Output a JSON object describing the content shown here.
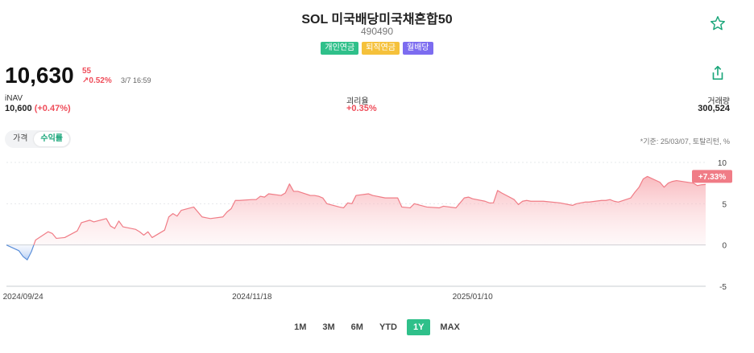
{
  "header": {
    "title": "SOL 미국배당미국채혼합50",
    "code": "490490",
    "badges": [
      {
        "label": "개인연금",
        "color": "#2fc08a"
      },
      {
        "label": "퇴직연금",
        "color": "#f5c13b"
      },
      {
        "label": "월배당",
        "color": "#7c6cf0"
      }
    ],
    "star_icon": "star-icon",
    "share_icon": "share-icon"
  },
  "quote": {
    "price": "10,630",
    "change_abs": "55",
    "change_pct": "↗0.52%",
    "timestamp": "3/7 16:59"
  },
  "stats": {
    "inav_label": "iNAV",
    "inav_value": "10,600",
    "inav_change": "(+0.47%)",
    "premium_label": "괴리율",
    "premium_value": "+0.35%",
    "volume_label": "거래량",
    "volume_value": "300,524"
  },
  "tabs": [
    {
      "label": "가격",
      "active": false
    },
    {
      "label": "수익률",
      "active": true
    }
  ],
  "basis_note": "*기준: 25/03/07, 토탈리턴, %",
  "chart_data": {
    "type": "area",
    "x": [
      "2024-09-20",
      "2024-09-23",
      "2024-09-24",
      "2024-09-25",
      "2024-09-26",
      "2024-09-27",
      "2024-09-30",
      "2024-10-01",
      "2024-10-02",
      "2024-10-04",
      "2024-10-07",
      "2024-10-08",
      "2024-10-10",
      "2024-10-11",
      "2024-10-14",
      "2024-10-15",
      "2024-10-16",
      "2024-10-17",
      "2024-10-18",
      "2024-10-21",
      "2024-10-22",
      "2024-10-23",
      "2024-10-24",
      "2024-10-25",
      "2024-10-28",
      "2024-10-29",
      "2024-10-30",
      "2024-10-31",
      "2024-11-01",
      "2024-11-04",
      "2024-11-05",
      "2024-11-06",
      "2024-11-07",
      "2024-11-08",
      "2024-11-11",
      "2024-11-12",
      "2024-11-13",
      "2024-11-14",
      "2024-11-15",
      "2024-11-18",
      "2024-11-19",
      "2024-11-20",
      "2024-11-21",
      "2024-11-22",
      "2024-11-25",
      "2024-11-26",
      "2024-11-27",
      "2024-11-28",
      "2024-11-29",
      "2024-12-02",
      "2024-12-03",
      "2024-12-04",
      "2024-12-05",
      "2024-12-06",
      "2024-12-09",
      "2024-12-10",
      "2024-12-11",
      "2024-12-12",
      "2024-12-13",
      "2024-12-16",
      "2024-12-17",
      "2024-12-18",
      "2024-12-19",
      "2024-12-20",
      "2024-12-23",
      "2024-12-24",
      "2024-12-26",
      "2024-12-27",
      "2024-12-30",
      "2025-01-02",
      "2025-01-03",
      "2025-01-06",
      "2025-01-07",
      "2025-01-08",
      "2025-01-09",
      "2025-01-10",
      "2025-01-13",
      "2025-01-14",
      "2025-01-15",
      "2025-01-16",
      "2025-01-17",
      "2025-01-20",
      "2025-01-21",
      "2025-01-22",
      "2025-01-23",
      "2025-01-24",
      "2025-01-27",
      "2025-01-31",
      "2025-02-03",
      "2025-02-04",
      "2025-02-05",
      "2025-02-06",
      "2025-02-07",
      "2025-02-10",
      "2025-02-11",
      "2025-02-12",
      "2025-02-13",
      "2025-02-14",
      "2025-02-17",
      "2025-02-18",
      "2025-02-19",
      "2025-02-20",
      "2025-02-21",
      "2025-02-24",
      "2025-02-25",
      "2025-02-26",
      "2025-02-27",
      "2025-02-28",
      "2025-03-04",
      "2025-03-05",
      "2025-03-06",
      "2025-03-07"
    ],
    "values": [
      0.0,
      -0.7,
      -1.4,
      -1.8,
      -0.8,
      0.6,
      1.6,
      1.4,
      0.8,
      0.9,
      1.7,
      2.7,
      3.0,
      2.8,
      3.2,
      2.3,
      2.0,
      2.9,
      2.2,
      1.9,
      1.6,
      1.2,
      1.6,
      0.9,
      1.8,
      3.4,
      3.8,
      3.5,
      4.2,
      4.6,
      4.0,
      3.4,
      3.3,
      3.2,
      3.4,
      4.0,
      4.4,
      5.4,
      5.4,
      5.5,
      5.5,
      5.9,
      5.8,
      6.2,
      6.0,
      6.3,
      7.4,
      6.5,
      6.5,
      6.0,
      6.0,
      5.9,
      5.7,
      5.0,
      4.6,
      4.5,
      5.1,
      5.0,
      6.0,
      6.2,
      6.0,
      5.9,
      5.8,
      5.7,
      5.7,
      4.6,
      4.5,
      5.0,
      4.6,
      4.5,
      4.7,
      4.5,
      5.1,
      5.7,
      5.8,
      5.6,
      5.3,
      5.1,
      5.1,
      6.6,
      6.3,
      5.5,
      4.9,
      5.3,
      5.4,
      5.3,
      5.3,
      5.1,
      4.8,
      5.0,
      5.1,
      5.2,
      5.2,
      5.4,
      5.4,
      5.5,
      5.3,
      5.2,
      5.7,
      6.4,
      7.0,
      8.0,
      8.3,
      7.6,
      7.0,
      7.5,
      7.7,
      7.8,
      7.5,
      7.2,
      7.3,
      7.33
    ],
    "x_tick_labels": [
      "2024/09/24",
      "2024/11/18",
      "2025/01/10"
    ],
    "y_ticks": [
      10,
      5,
      0,
      -5
    ],
    "ylim": [
      -5,
      10
    ],
    "last_value_label": "+7.33%",
    "positive_color": "#f07c86",
    "negative_color": "#5b8fd9",
    "grid": true
  },
  "periods": [
    {
      "label": "1M",
      "active": false
    },
    {
      "label": "3M",
      "active": false
    },
    {
      "label": "6M",
      "active": false
    },
    {
      "label": "YTD",
      "active": false
    },
    {
      "label": "1Y",
      "active": true
    },
    {
      "label": "MAX",
      "active": false
    }
  ]
}
